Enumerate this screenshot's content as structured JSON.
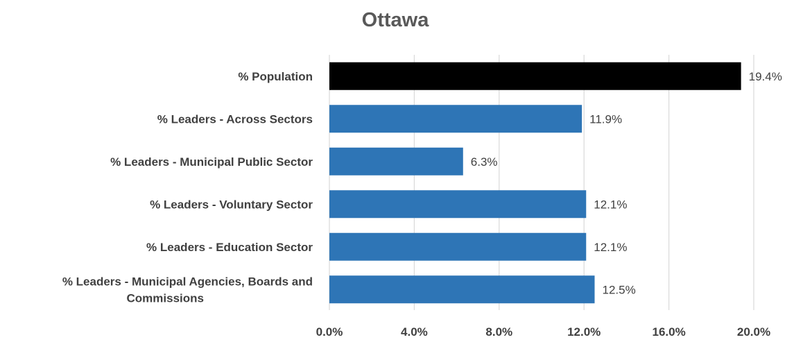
{
  "chart_data": {
    "type": "bar",
    "orientation": "horizontal",
    "title": "Ottawa",
    "xlabel": "",
    "ylabel": "",
    "categories": [
      "% Population",
      "% Leaders - Across Sectors",
      "% Leaders - Municipal Public Sector",
      "% Leaders - Voluntary Sector",
      "% Leaders - Education Sector",
      "% Leaders - Municipal Agencies, Boards and Commissions"
    ],
    "category_lines": [
      [
        "% Population"
      ],
      [
        "% Leaders - Across Sectors"
      ],
      [
        "% Leaders - Municipal Public Sector"
      ],
      [
        "% Leaders - Voluntary Sector"
      ],
      [
        "% Leaders - Education Sector"
      ],
      [
        "% Leaders - Municipal Agencies, Boards and",
        "Commissions"
      ]
    ],
    "values": [
      19.4,
      11.9,
      6.3,
      12.1,
      12.1,
      12.5
    ],
    "data_labels": [
      "19.4%",
      "11.9%",
      "6.3%",
      "12.1%",
      "12.1%",
      "12.5%"
    ],
    "bar_colors": [
      "#000000",
      "#2e75b6",
      "#2e75b6",
      "#2e75b6",
      "#2e75b6",
      "#2e75b6"
    ],
    "xlim": [
      0,
      20
    ],
    "xticks": [
      0,
      4,
      8,
      12,
      16,
      20
    ],
    "xtick_labels": [
      "0.0%",
      "4.0%",
      "8.0%",
      "12.0%",
      "16.0%",
      "20.0%"
    ],
    "grid": true,
    "legend": "none"
  }
}
